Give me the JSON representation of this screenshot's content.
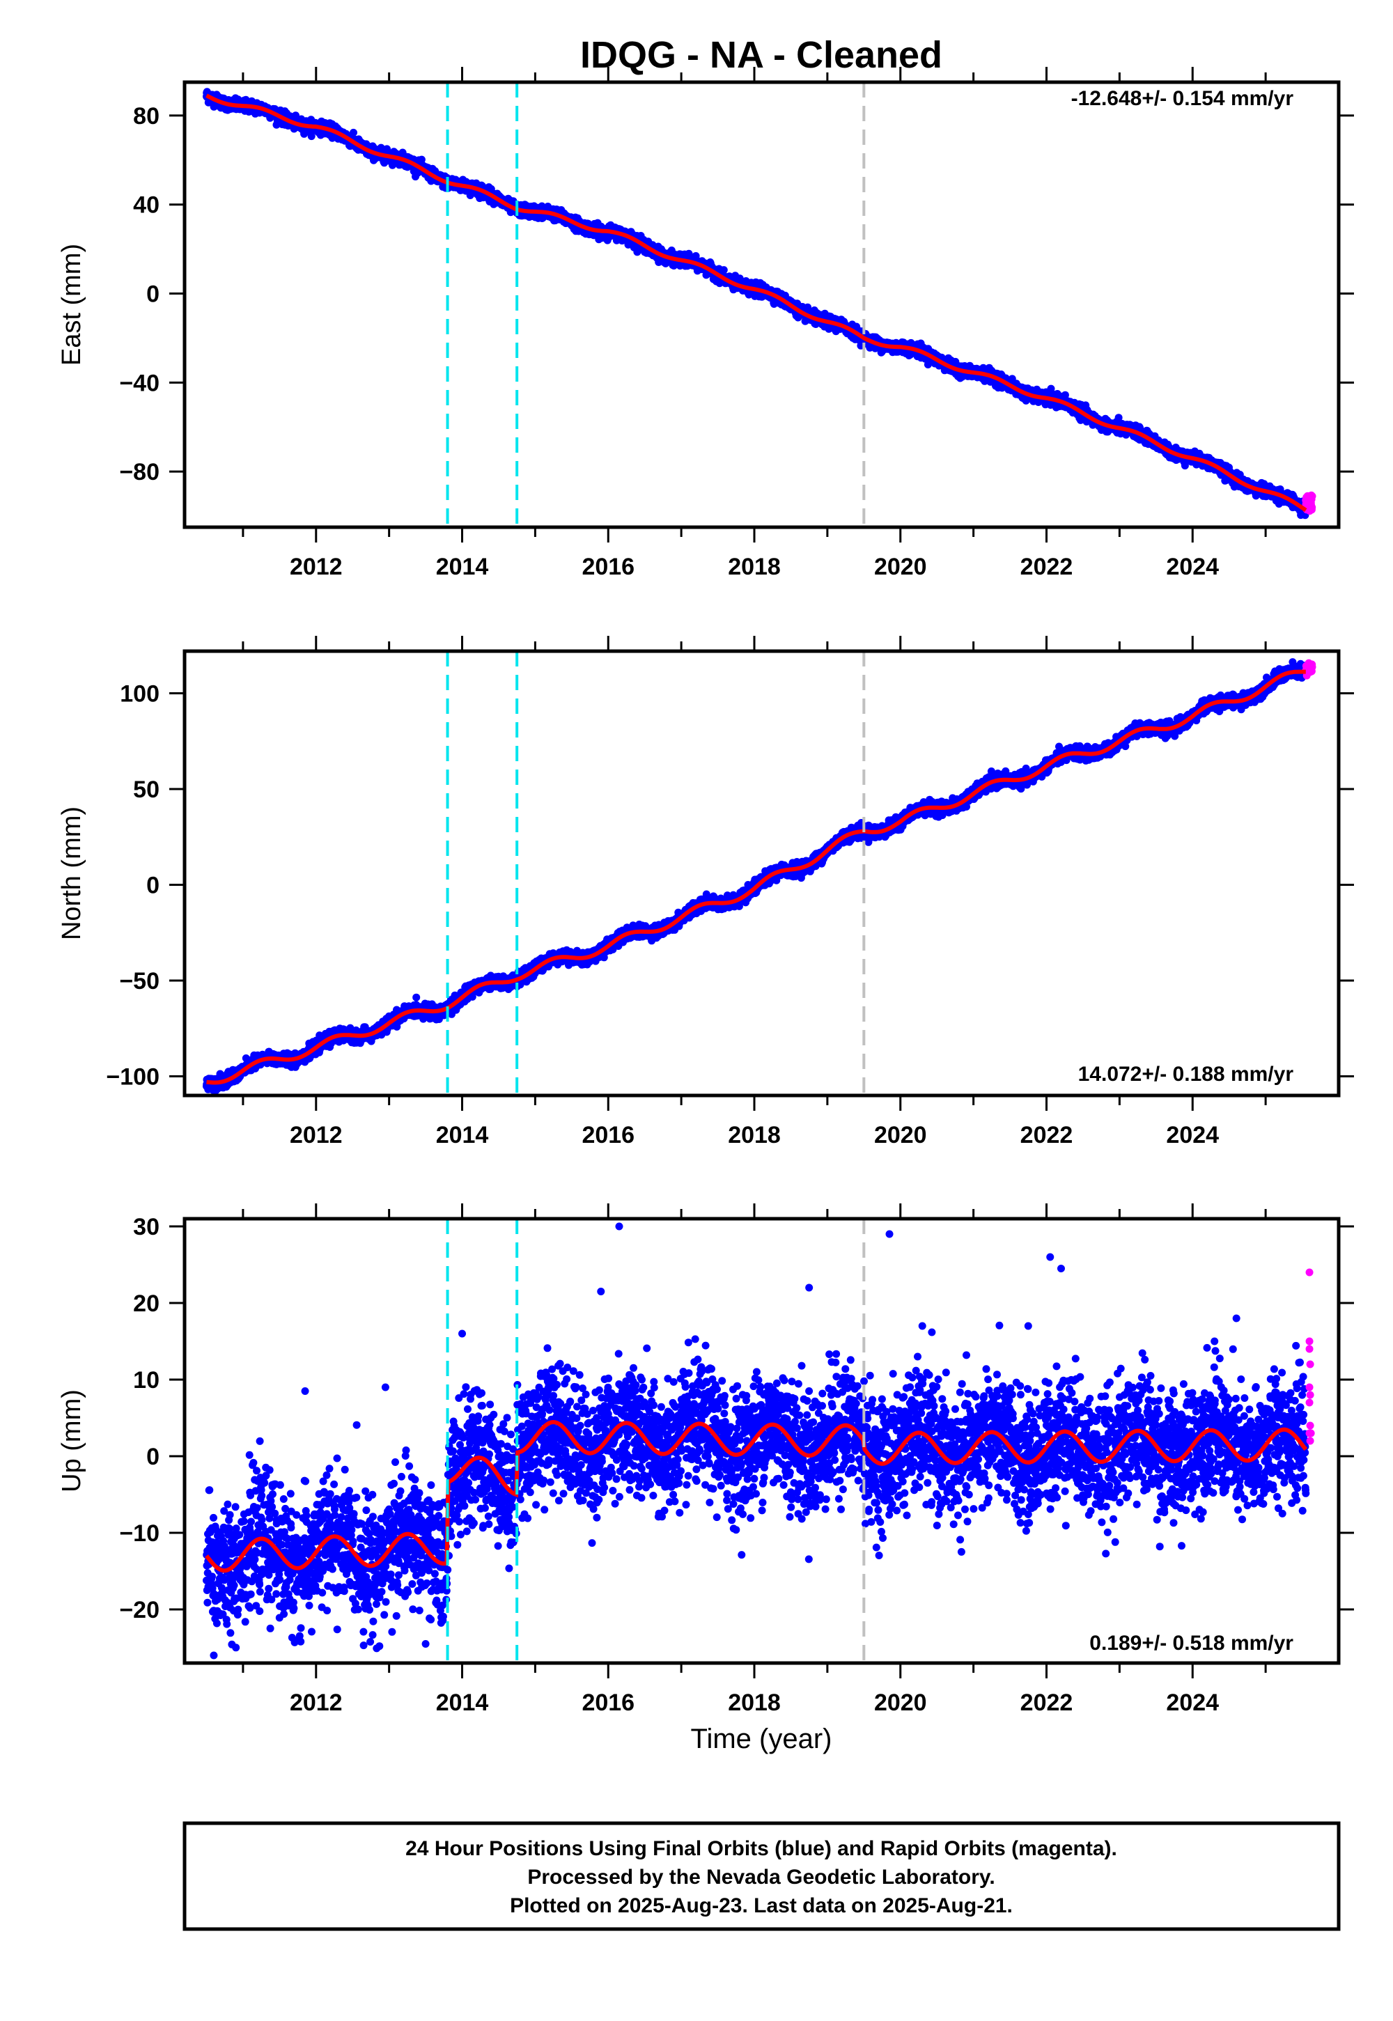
{
  "title": "IDQG  - NA - Cleaned",
  "xlabel": "Time (year)",
  "footer": [
    "24 Hour Positions Using Final Orbits (blue) and Rapid Orbits (magenta).",
    "Processed by the Nevada Geodetic Laboratory.",
    "Plotted on 2025-Aug-23. Last data on 2025-Aug-21."
  ],
  "colors": {
    "final_orbits": "#0000ff",
    "rapid_orbits": "#ff00ff",
    "model": "#ff0000",
    "equipment_change": "#00e5ee",
    "earthquake": "#c0c0c0"
  },
  "chart_data": [
    {
      "type": "scatter",
      "ylabel": "East (mm)",
      "rate_text": "-12.648+/- 0.154 mm/yr",
      "xlim": [
        2010.2,
        2026.0
      ],
      "ylim": [
        -105,
        95
      ],
      "xticks": [
        "2012",
        "2014",
        "2016",
        "2018",
        "2020",
        "2022",
        "2024"
      ],
      "yticks": [
        "80",
        "40",
        "0",
        "−40",
        "−80"
      ],
      "ytick_values": [
        80,
        40,
        0,
        -40,
        -80
      ],
      "grid": false,
      "vlines": [
        {
          "x": 2013.8,
          "color": "cyan",
          "style": "dashed"
        },
        {
          "x": 2014.75,
          "color": "cyan",
          "style": "dashed"
        },
        {
          "x": 2019.5,
          "color": "gray",
          "style": "dashed"
        }
      ],
      "series": [
        {
          "name": "Final Orbits",
          "color": "blue",
          "x_start": 2010.5,
          "x_end": 2025.55,
          "trend": {
            "x": [
              2010.5,
              2012.0,
              2013.8,
              2014.75,
              2016.0,
              2018.0,
              2019.5,
              2020.0,
              2022.0,
              2024.0,
              2025.55
            ],
            "y": [
              89,
              75,
              51,
              39,
              28,
              2,
              -20,
              -24,
              -47,
              -74,
              -97
            ]
          },
          "scatter_sd": 1.3
        },
        {
          "name": "Rapid Orbits",
          "color": "magenta",
          "x_start": 2025.55,
          "x_end": 2025.64,
          "trend": {
            "x": [
              2025.55,
              2025.64
            ],
            "y": [
              -95,
              -94
            ]
          },
          "scatter_sd": 2.0
        },
        {
          "name": "Model",
          "color": "red",
          "line": true,
          "trend": {
            "x": [
              2010.5,
              2012.0,
              2013.8,
              2014.75,
              2016.0,
              2018.0,
              2019.5,
              2020.0,
              2022.0,
              2024.0,
              2025.55
            ],
            "y": [
              89,
              75,
              51,
              39,
              28,
              2,
              -20,
              -24,
              -47,
              -74,
              -97
            ]
          },
          "seasonal_amp": 1.2
        }
      ]
    },
    {
      "type": "scatter",
      "ylabel": "North (mm)",
      "rate_text": "14.072+/- 0.188 mm/yr",
      "xlim": [
        2010.2,
        2026.0
      ],
      "ylim": [
        -110,
        122
      ],
      "xticks": [
        "2012",
        "2014",
        "2016",
        "2018",
        "2020",
        "2022",
        "2024"
      ],
      "yticks": [
        "100",
        "50",
        "0",
        "−50",
        "−100"
      ],
      "ytick_values": [
        100,
        50,
        0,
        -50,
        -100
      ],
      "grid": false,
      "vlines": [
        {
          "x": 2013.8,
          "color": "cyan",
          "style": "dashed"
        },
        {
          "x": 2014.75,
          "color": "cyan",
          "style": "dashed"
        },
        {
          "x": 2019.5,
          "color": "gray",
          "style": "dashed"
        }
      ],
      "series": [
        {
          "name": "Final Orbits",
          "color": "blue",
          "x_start": 2010.5,
          "x_end": 2025.55,
          "trend": {
            "x": [
              2010.5,
              2012.0,
              2013.8,
              2014.75,
              2016.0,
              2018.0,
              2019.5,
              2020.0,
              2022.0,
              2024.0,
              2025.55
            ],
            "y": [
              -103,
              -85,
              -62,
              -47,
              -32,
              -2,
              28,
              33,
              62,
              88,
              112
            ]
          },
          "scatter_sd": 1.6
        },
        {
          "name": "Rapid Orbits",
          "color": "magenta",
          "x_start": 2025.55,
          "x_end": 2025.64,
          "trend": {
            "x": [
              2025.55,
              2025.64
            ],
            "y": [
              112,
              113
            ]
          },
          "scatter_sd": 2.0
        },
        {
          "name": "Model",
          "color": "red",
          "line": true,
          "trend": {
            "x": [
              2010.5,
              2012.0,
              2013.8,
              2014.75,
              2016.0,
              2018.0,
              2019.5,
              2020.0,
              2022.0,
              2024.0,
              2025.55
            ],
            "y": [
              -103,
              -85,
              -62,
              -47,
              -32,
              -2,
              28,
              33,
              62,
              88,
              112
            ]
          },
          "seasonal_amp": 2.5
        }
      ]
    },
    {
      "type": "scatter",
      "ylabel": "Up (mm)",
      "xlabel": "Time (year)",
      "rate_text": "0.189+/- 0.518 mm/yr",
      "xlim": [
        2010.2,
        2026.0
      ],
      "ylim": [
        -27,
        31
      ],
      "xticks": [
        "2012",
        "2014",
        "2016",
        "2018",
        "2020",
        "2022",
        "2024"
      ],
      "yticks": [
        "30",
        "20",
        "10",
        "0",
        "−10",
        "−20"
      ],
      "ytick_values": [
        30,
        20,
        10,
        0,
        -10,
        -20
      ],
      "grid": false,
      "vlines": [
        {
          "x": 2013.8,
          "color": "cyan",
          "style": "dashed"
        },
        {
          "x": 2014.75,
          "color": "cyan",
          "style": "dashed"
        },
        {
          "x": 2019.5,
          "color": "gray",
          "style": "dashed"
        }
      ],
      "series": [
        {
          "name": "Final Orbits",
          "color": "blue",
          "x_start": 2010.5,
          "x_end": 2025.55,
          "trend": {
            "x": [
              2010.5,
              2013.79,
              2013.81,
              2014.74,
              2014.76,
              2019.49,
              2019.51,
              2025.55
            ],
            "y": [
              -13,
              -12,
              -1.5,
              -3,
              2.5,
              2,
              1,
              1.5
            ]
          },
          "scatter_sd": 4.0
        },
        {
          "name": "Rapid Orbits",
          "color": "magenta",
          "x_start": 2025.55,
          "x_end": 2025.64,
          "points": [
            [
              2025.6,
              24
            ],
            [
              2025.6,
              15
            ],
            [
              2025.6,
              14
            ],
            [
              2025.61,
              12
            ],
            [
              2025.6,
              9
            ],
            [
              2025.61,
              8
            ],
            [
              2025.6,
              7
            ],
            [
              2025.61,
              4
            ],
            [
              2025.6,
              3
            ],
            [
              2025.61,
              2
            ],
            [
              2025.62,
              3
            ]
          ]
        },
        {
          "name": "Model",
          "color": "red",
          "line": true,
          "trend": {
            "x": [
              2010.5,
              2013.79,
              2013.81,
              2014.74,
              2014.76,
              2019.49,
              2019.51,
              2025.55
            ],
            "y": [
              -13,
              -12,
              -1.5,
              -3,
              2.5,
              2,
              1,
              1.5
            ]
          },
          "seasonal_amp": 2.0
        },
        {
          "name": "Outliers",
          "color": "blue",
          "points": [
            [
              2016.15,
              30
            ],
            [
              2019.85,
              29
            ],
            [
              2022.05,
              26
            ],
            [
              2022.2,
              24.5
            ],
            [
              2018.75,
              22
            ],
            [
              2015.9,
              21.5
            ],
            [
              2011.85,
              8.5
            ],
            [
              2012.95,
              9
            ],
            [
              2010.6,
              -26
            ],
            [
              2013.5,
              -24.5
            ],
            [
              2014.0,
              16
            ],
            [
              2020.3,
              17
            ],
            [
              2024.6,
              18
            ],
            [
              2021.75,
              17
            ],
            [
              2024.3,
              15
            ]
          ]
        }
      ]
    }
  ]
}
